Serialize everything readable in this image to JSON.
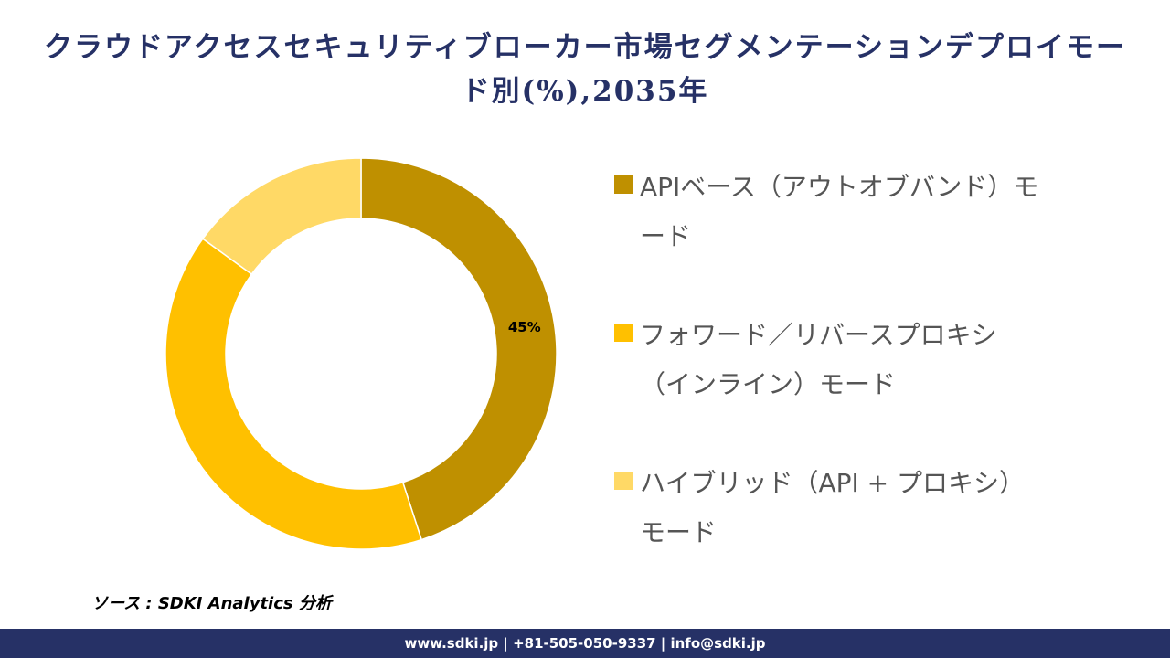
{
  "chart_data": {
    "type": "donut",
    "title": "クラウドアクセスセキュリティブローカー市場セグメンテーションデプロイモード別(%),2035年",
    "categories": [
      "APIベース（アウトオブバンド）モード",
      "フォワード／リバースプロキシ（インライン）モード",
      "ハイブリッド（API + プロキシ）モード"
    ],
    "values": [
      45,
      40,
      15
    ],
    "value_labels": [
      "45%",
      null,
      null
    ],
    "colors": [
      "#bf9000",
      "#ffc000",
      "#ffd966"
    ]
  },
  "source": "ソース : SDKI Analytics 分析",
  "footer": "www.sdki.jp | +81-505-050-9337 | info@sdki.jp"
}
